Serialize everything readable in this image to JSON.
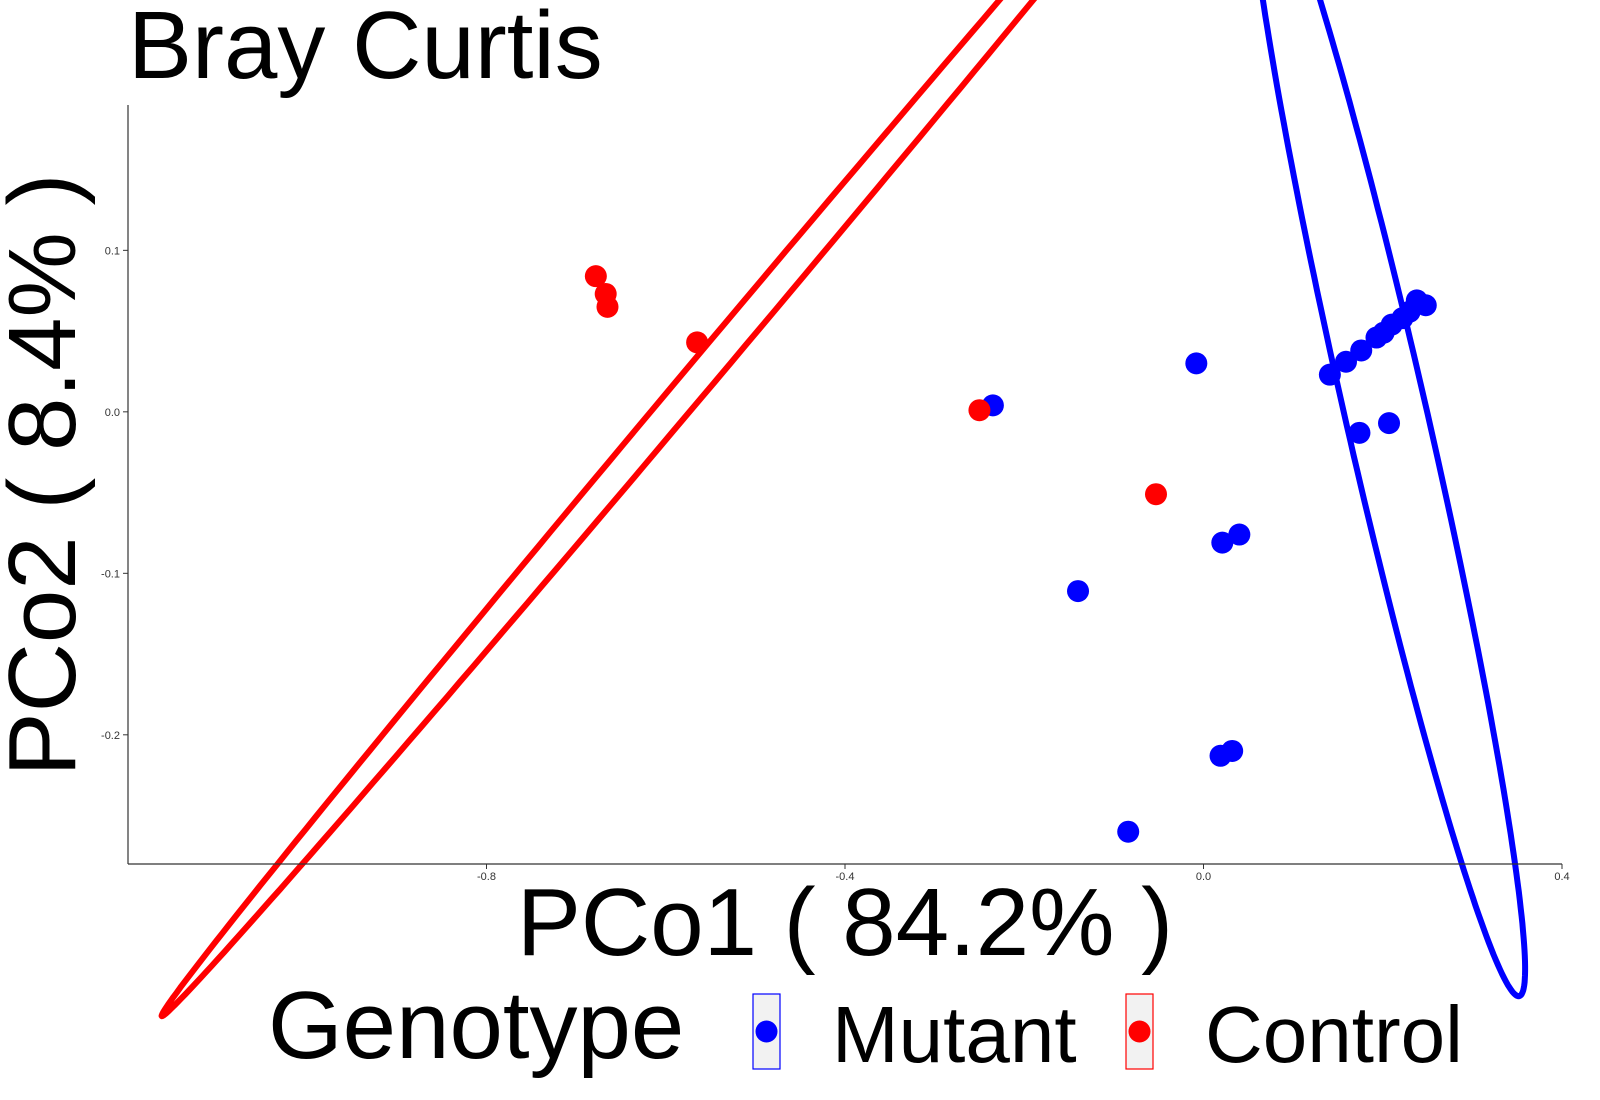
{
  "chart_data": {
    "type": "scatter",
    "title": "Bray Curtis",
    "xlabel": "PCo1 ( 84.2% )",
    "ylabel": "PCo2 ( 8.4% )",
    "xlim": [
      -1.2,
      0.4
    ],
    "ylim": [
      -0.28,
      0.19
    ],
    "x_ticks": [
      -0.8,
      -0.4,
      0.0,
      0.4
    ],
    "x_tick_labels": [
      "-0.8",
      "-0.4",
      "0.0",
      "0.4"
    ],
    "y_ticks": [
      0.1,
      0.0,
      -0.1,
      -0.2
    ],
    "y_tick_labels": [
      "0.1",
      "0.0",
      "-0.1",
      "-0.2"
    ],
    "grid": false,
    "legend": {
      "title": "Genotype",
      "placement": "bottom",
      "entries": [
        {
          "label": "Mutant",
          "color": "#0000ff"
        },
        {
          "label": "Control",
          "color": "#ff0000"
        }
      ]
    },
    "series": [
      {
        "name": "Mutant",
        "color": "#0000ff",
        "points": [
          {
            "x": -0.235,
            "y": 0.004
          },
          {
            "x": -0.008,
            "y": 0.03
          },
          {
            "x": -0.14,
            "y": -0.111
          },
          {
            "x": 0.021,
            "y": -0.081
          },
          {
            "x": 0.04,
            "y": -0.076
          },
          {
            "x": 0.019,
            "y": -0.213
          },
          {
            "x": 0.032,
            "y": -0.21
          },
          {
            "x": -0.084,
            "y": -0.26
          },
          {
            "x": 0.141,
            "y": 0.023
          },
          {
            "x": 0.159,
            "y": 0.031
          },
          {
            "x": 0.176,
            "y": 0.038
          },
          {
            "x": 0.193,
            "y": 0.046
          },
          {
            "x": 0.201,
            "y": 0.049
          },
          {
            "x": 0.21,
            "y": 0.054
          },
          {
            "x": 0.222,
            "y": 0.058
          },
          {
            "x": 0.23,
            "y": 0.062
          },
          {
            "x": 0.238,
            "y": 0.069
          },
          {
            "x": 0.248,
            "y": 0.066
          },
          {
            "x": 0.174,
            "y": -0.013
          },
          {
            "x": 0.207,
            "y": -0.007
          }
        ],
        "ellipse": {
          "cx": 0.205,
          "cy": -0.005,
          "rx": 0.248,
          "ry": 0.067,
          "angle_deg": -52.5
        }
      },
      {
        "name": "Control",
        "color": "#ff0000",
        "points": [
          {
            "x": -0.678,
            "y": 0.084
          },
          {
            "x": -0.667,
            "y": 0.073
          },
          {
            "x": -0.665,
            "y": 0.065
          },
          {
            "x": -0.565,
            "y": 0.043
          },
          {
            "x": -0.25,
            "y": 0.001
          },
          {
            "x": -0.053,
            "y": -0.051
          }
        ],
        "ellipse": {
          "cx": -0.53,
          "cy": 0.043,
          "rx": 0.6735,
          "ry": 0.0135,
          "angle_deg": 20.1
        }
      }
    ]
  }
}
